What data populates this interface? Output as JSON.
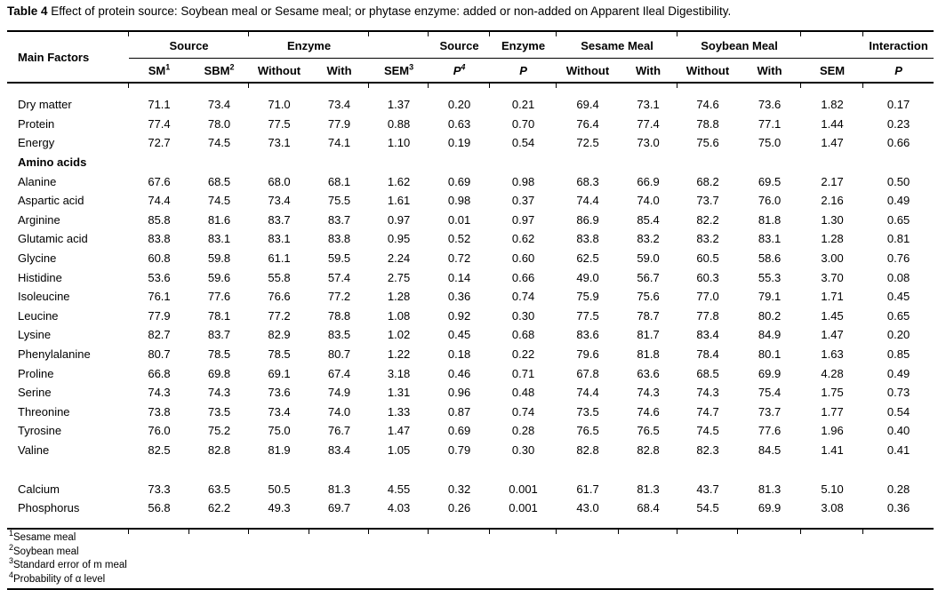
{
  "caption": {
    "label": "Table 4",
    "text": " Effect of protein source: Soybean meal or Sesame meal; or phytase enzyme: added or non-added on Apparent Ileal Digestibility."
  },
  "table": {
    "main_factors_header": "Main Factors",
    "groups": [
      "Source",
      "Enzyme",
      "",
      "Source",
      "Enzyme",
      "Sesame Meal",
      "Soybean Meal",
      "",
      "Interaction"
    ],
    "subheaders": [
      {
        "t": "SM",
        "sup": "1"
      },
      {
        "t": "SBM",
        "sup": "2"
      },
      {
        "t": "Without"
      },
      {
        "t": "With"
      },
      {
        "t": "SEM",
        "sup": "3"
      },
      {
        "t": "P",
        "sup": "4"
      },
      {
        "t": "P"
      },
      {
        "t": "Without"
      },
      {
        "t": "With"
      },
      {
        "t": "Without"
      },
      {
        "t": "With"
      },
      {
        "t": "SEM"
      },
      {
        "t": "P"
      }
    ],
    "rows": [
      {
        "type": "data",
        "label": "Dry matter",
        "values": [
          "71.1",
          "73.4",
          "71.0",
          "73.4",
          "1.37",
          "0.20",
          "0.21",
          "69.4",
          "73.1",
          "74.6",
          "73.6",
          "1.82",
          "0.17"
        ]
      },
      {
        "type": "data",
        "label": "Protein",
        "values": [
          "77.4",
          "78.0",
          "77.5",
          "77.9",
          "0.88",
          "0.63",
          "0.70",
          "76.4",
          "77.4",
          "78.8",
          "77.1",
          "1.44",
          "0.23"
        ]
      },
      {
        "type": "data",
        "label": "Energy",
        "values": [
          "72.7",
          "74.5",
          "73.1",
          "74.1",
          "1.10",
          "0.19",
          "0.54",
          "72.5",
          "73.0",
          "75.6",
          "75.0",
          "1.47",
          "0.66"
        ]
      },
      {
        "type": "section",
        "label": "Amino acids",
        "values": []
      },
      {
        "type": "data",
        "label": "Alanine",
        "values": [
          "67.6",
          "68.5",
          "68.0",
          "68.1",
          "1.62",
          "0.69",
          "0.98",
          "68.3",
          "66.9",
          "68.2",
          "69.5",
          "2.17",
          "0.50"
        ]
      },
      {
        "type": "data",
        "label": "Aspartic acid",
        "values": [
          "74.4",
          "74.5",
          "73.4",
          "75.5",
          "1.61",
          "0.98",
          "0.37",
          "74.4",
          "74.0",
          "73.7",
          "76.0",
          "2.16",
          "0.49"
        ]
      },
      {
        "type": "data",
        "label": "Arginine",
        "values": [
          "85.8",
          "81.6",
          "83.7",
          "83.7",
          "0.97",
          "0.01",
          "0.97",
          "86.9",
          "85.4",
          "82.2",
          "81.8",
          "1.30",
          "0.65"
        ]
      },
      {
        "type": "data",
        "label": "Glutamic acid",
        "values": [
          "83.8",
          "83.1",
          "83.1",
          "83.8",
          "0.95",
          "0.52",
          "0.62",
          "83.8",
          "83.2",
          "83.2",
          "83.1",
          "1.28",
          "0.81"
        ]
      },
      {
        "type": "data",
        "label": "Glycine",
        "values": [
          "60.8",
          "59.8",
          "61.1",
          "59.5",
          "2.24",
          "0.72",
          "0.60",
          "62.5",
          "59.0",
          "60.5",
          "58.6",
          "3.00",
          "0.76"
        ]
      },
      {
        "type": "data",
        "label": "Histidine",
        "values": [
          "53.6",
          "59.6",
          "55.8",
          "57.4",
          "2.75",
          "0.14",
          "0.66",
          "49.0",
          "56.7",
          "60.3",
          "55.3",
          "3.70",
          "0.08"
        ]
      },
      {
        "type": "data",
        "label": "Isoleucine",
        "values": [
          "76.1",
          "77.6",
          "76.6",
          "77.2",
          "1.28",
          "0.36",
          "0.74",
          "75.9",
          "75.6",
          "77.0",
          "79.1",
          "1.71",
          "0.45"
        ]
      },
      {
        "type": "data",
        "label": "Leucine",
        "values": [
          "77.9",
          "78.1",
          "77.2",
          "78.8",
          "1.08",
          "0.92",
          "0.30",
          "77.5",
          "78.7",
          "77.8",
          "80.2",
          "1.45",
          "0.65"
        ]
      },
      {
        "type": "data",
        "label": "Lysine",
        "values": [
          "82.7",
          "83.7",
          "82.9",
          "83.5",
          "1.02",
          "0.45",
          "0.68",
          "83.6",
          "81.7",
          "83.4",
          "84.9",
          "1.47",
          "0.20"
        ]
      },
      {
        "type": "data",
        "label": "Phenylalanine",
        "values": [
          "80.7",
          "78.5",
          "78.5",
          "80.7",
          "1.22",
          "0.18",
          "0.22",
          "79.6",
          "81.8",
          "78.4",
          "80.1",
          "1.63",
          "0.85"
        ]
      },
      {
        "type": "data",
        "label": "Proline",
        "values": [
          "66.8",
          "69.8",
          "69.1",
          "67.4",
          "3.18",
          "0.46",
          "0.71",
          "67.8",
          "63.6",
          "68.5",
          "69.9",
          "4.28",
          "0.49"
        ]
      },
      {
        "type": "data",
        "label": "Serine",
        "values": [
          "74.3",
          "74.3",
          "73.6",
          "74.9",
          "1.31",
          "0.96",
          "0.48",
          "74.4",
          "74.3",
          "74.3",
          "75.4",
          "1.75",
          "0.73"
        ]
      },
      {
        "type": "data",
        "label": "Threonine",
        "values": [
          "73.8",
          "73.5",
          "73.4",
          "74.0",
          "1.33",
          "0.87",
          "0.74",
          "73.5",
          "74.6",
          "74.7",
          "73.7",
          "1.77",
          "0.54"
        ]
      },
      {
        "type": "data",
        "label": "Tyrosine",
        "values": [
          "76.0",
          "75.2",
          "75.0",
          "76.7",
          "1.47",
          "0.69",
          "0.28",
          "76.5",
          "76.5",
          "74.5",
          "77.6",
          "1.96",
          "0.40"
        ]
      },
      {
        "type": "data",
        "label": "Valine",
        "values": [
          "82.5",
          "82.8",
          "81.9",
          "83.4",
          "1.05",
          "0.79",
          "0.30",
          "82.8",
          "82.8",
          "82.3",
          "84.5",
          "1.41",
          "0.41"
        ]
      },
      {
        "type": "spacer",
        "label": "",
        "values": []
      },
      {
        "type": "data",
        "label": "Calcium",
        "values": [
          "73.3",
          "63.5",
          "50.5",
          "81.3",
          "4.55",
          "0.32",
          "0.001",
          "61.7",
          "81.3",
          "43.7",
          "81.3",
          "5.10",
          "0.28"
        ]
      },
      {
        "type": "data",
        "label": "Phosphorus",
        "values": [
          "56.8",
          "62.2",
          "49.3",
          "69.7",
          "4.03",
          "0.26",
          "0.001",
          "43.0",
          "68.4",
          "54.5",
          "69.9",
          "3.08",
          "0.36"
        ]
      }
    ]
  },
  "footnotes": [
    {
      "sup": "1",
      "text": "Sesame meal"
    },
    {
      "sup": "2",
      "text": "Soybean meal"
    },
    {
      "sup": "3",
      "text": "Standard error of m meal"
    },
    {
      "sup": "4",
      "text": "Probability of α level"
    }
  ]
}
